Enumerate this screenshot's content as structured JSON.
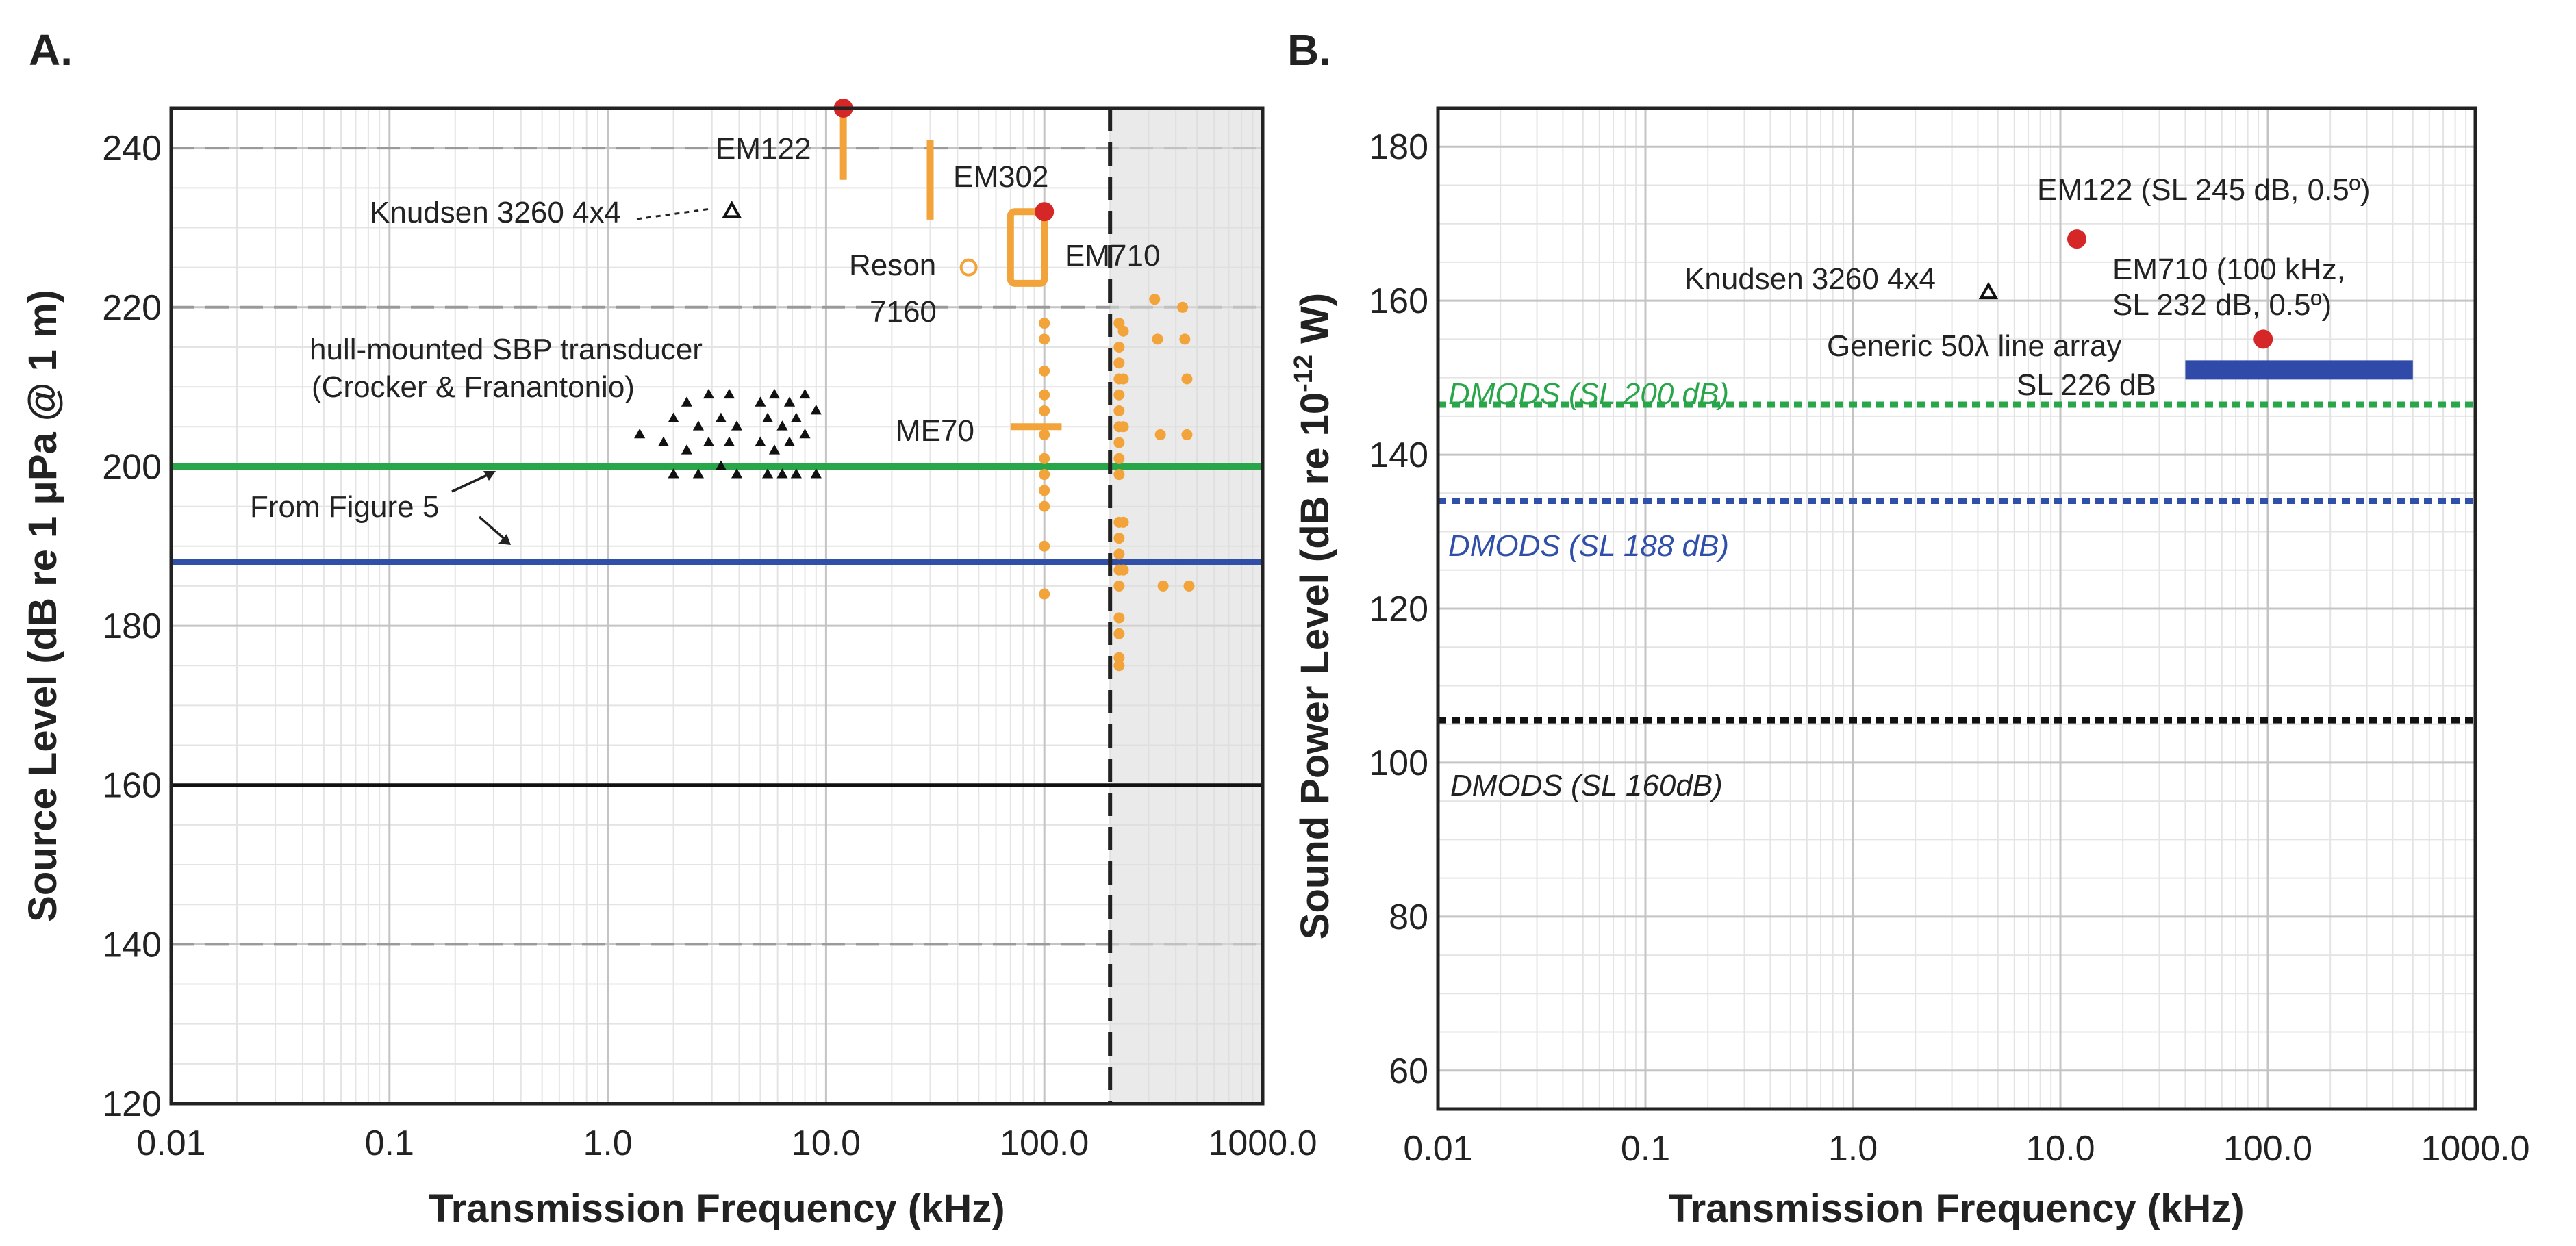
{
  "chart_data": [
    {
      "panel": "A.",
      "type": "scatter",
      "xscale": "log",
      "xlabel": "Transmission Frequency (kHz)",
      "ylabel": "Source Level (dB re 1 μPa @ 1 m)",
      "xlim": [
        0.01,
        1000
      ],
      "ylim": [
        120,
        245
      ],
      "xticks": [
        0.01,
        0.1,
        1,
        10,
        100,
        1000
      ],
      "xtick_labels": [
        "0.01",
        "0.1",
        "1.0",
        "10.0",
        "100.0",
        "1000.0"
      ],
      "yticks": [
        120,
        140,
        160,
        180,
        200,
        220,
        240
      ],
      "ytick_labels": [
        "120",
        "140",
        "160",
        "180",
        "200",
        "220",
        "240"
      ],
      "dashed_y": [
        140,
        220,
        240
      ],
      "shaded_region_x": [
        200,
        1000
      ],
      "vertical_dashed_x": 200,
      "lines": [
        {
          "name": "green line",
          "y": 200,
          "color": "#2aa64a"
        },
        {
          "name": "blue line",
          "y": 188,
          "color": "#2f4fa8"
        },
        {
          "name": "black line",
          "y": 160,
          "color": "#111111"
        }
      ],
      "series": [
        {
          "name": "hull-mounted SBP transducer (Crocker & Franantonio)",
          "marker": "triangle",
          "color": "#111111",
          "points": [
            [
              1.4,
              204
            ],
            [
              1.8,
              203
            ],
            [
              2.0,
              206
            ],
            [
              2.0,
              199
            ],
            [
              2.3,
              208
            ],
            [
              2.3,
              202
            ],
            [
              2.6,
              205
            ],
            [
              2.6,
              199
            ],
            [
              2.9,
              209
            ],
            [
              2.9,
              203
            ],
            [
              3.3,
              206
            ],
            [
              3.3,
              200
            ],
            [
              3.6,
              209
            ],
            [
              3.6,
              203
            ],
            [
              3.9,
              205
            ],
            [
              3.9,
              199
            ],
            [
              5.0,
              208
            ],
            [
              5.0,
              203
            ],
            [
              5.4,
              206
            ],
            [
              5.4,
              199
            ],
            [
              5.8,
              209
            ],
            [
              5.8,
              202
            ],
            [
              6.3,
              205
            ],
            [
              6.3,
              199
            ],
            [
              6.8,
              208
            ],
            [
              6.8,
              203
            ],
            [
              7.3,
              206
            ],
            [
              7.3,
              199
            ],
            [
              8.0,
              209
            ],
            [
              8.0,
              204
            ],
            [
              9.0,
              207
            ],
            [
              9.0,
              199
            ]
          ]
        },
        {
          "name": "MBES > 200 kHz",
          "marker": "dot",
          "color": "#f2a33a",
          "points": [
            [
              220,
              218
            ],
            [
              220,
              215
            ],
            [
              220,
              213
            ],
            [
              220,
              211
            ],
            [
              220,
              209
            ],
            [
              220,
              207
            ],
            [
              220,
              205
            ],
            [
              220,
              203
            ],
            [
              220,
              201
            ],
            [
              220,
              199
            ],
            [
              220,
              193
            ],
            [
              220,
              191
            ],
            [
              220,
              189
            ],
            [
              220,
              187
            ],
            [
              220,
              185
            ],
            [
              220,
              181
            ],
            [
              220,
              179
            ],
            [
              220,
              176
            ],
            [
              220,
              175
            ],
            [
              230,
              217
            ],
            [
              230,
              211
            ],
            [
              230,
              205
            ],
            [
              230,
              193
            ],
            [
              230,
              187
            ],
            [
              320,
              221
            ],
            [
              330,
              216
            ],
            [
              340,
              204
            ],
            [
              350,
              185
            ],
            [
              430,
              220
            ],
            [
              440,
              216
            ],
            [
              450,
              211
            ],
            [
              450,
              204
            ],
            [
              460,
              185
            ]
          ]
        },
        {
          "name": "ME70 dots",
          "marker": "dot",
          "color": "#f2a33a",
          "points": [
            [
              100,
              218
            ],
            [
              100,
              216
            ],
            [
              100,
              212
            ],
            [
              100,
              209
            ],
            [
              100,
              207
            ],
            [
              100,
              204
            ],
            [
              100,
              201
            ],
            [
              100,
              199
            ],
            [
              100,
              197
            ],
            [
              100,
              195
            ],
            [
              100,
              190
            ],
            [
              100,
              184
            ]
          ]
        },
        {
          "name": "Knudsen 3260 4x4",
          "marker": "open-triangle",
          "color": "#111111",
          "points": [
            [
              3.7,
              232
            ]
          ]
        },
        {
          "name": "Reson 7160",
          "marker": "open-circle",
          "color": "#f2a33a",
          "points": [
            [
              45,
              225
            ]
          ]
        },
        {
          "name": "EM122",
          "marker": "red-dot",
          "color": "#d62728",
          "points": [
            [
              12,
              245
            ]
          ]
        },
        {
          "name": "EM710",
          "marker": "red-dot",
          "color": "#d62728",
          "points": [
            [
              100,
              232
            ]
          ]
        }
      ],
      "ranges": [
        {
          "name": "EM122",
          "x": [
            12,
            12
          ],
          "y": [
            236,
            245
          ]
        },
        {
          "name": "EM302",
          "x": [
            30,
            30
          ],
          "y": [
            231,
            241
          ]
        },
        {
          "name": "EM710",
          "x": [
            70,
            100
          ],
          "y": [
            223,
            232
          ]
        },
        {
          "name": "ME70",
          "x": [
            70,
            120
          ],
          "y": [
            205,
            205
          ]
        }
      ],
      "annotations": {
        "em122": "EM122",
        "knudsen": "Knudsen 3260 4x4",
        "em302": "EM302",
        "reson": "Reson",
        "reson_model": "7160",
        "em710": "EM710",
        "hull_1": "hull-mounted SBP transducer",
        "hull_2": "(Crocker & Franantonio)",
        "me70": "ME70",
        "from_fig": "From Figure 5"
      }
    },
    {
      "panel": "B.",
      "type": "scatter",
      "xscale": "log",
      "xlabel": "Transmission Frequency (kHz)",
      "ylabel_main": "Sound Power Level (dB re 10",
      "ylabel_sup": "-12",
      "ylabel_tail": " W)",
      "xlim": [
        0.01,
        1000
      ],
      "ylim": [
        55,
        185
      ],
      "xticks": [
        0.01,
        0.1,
        1,
        10,
        100,
        1000
      ],
      "xtick_labels": [
        "0.01",
        "0.1",
        "1.0",
        "10.0",
        "100.0",
        "1000.0"
      ],
      "yticks": [
        60,
        80,
        100,
        120,
        140,
        160,
        180
      ],
      "ytick_labels": [
        "60",
        "80",
        "100",
        "120",
        "140",
        "160",
        "180"
      ],
      "lines": [
        {
          "name": "DMODS (SL 200 dB)",
          "y": 146.5,
          "color": "#2aa64a",
          "dotted": true
        },
        {
          "name": "DMODS (SL 188 dB)",
          "y": 134,
          "color": "#2f4fa8",
          "dotted": true
        },
        {
          "name": "DMODS (SL 160dB)",
          "y": 105.5,
          "color": "#111111",
          "dotted": true
        }
      ],
      "series": [
        {
          "name": "EM122 (SL 245 dB, 0.5º)",
          "marker": "red-dot",
          "color": "#d62728",
          "points": [
            [
              12,
              168
            ]
          ]
        },
        {
          "name": "EM710 (100 kHz, SL 232 dB, 0.5º)",
          "marker": "red-dot",
          "color": "#d62728",
          "points": [
            [
              95,
              155
            ]
          ]
        },
        {
          "name": "Knudsen 3260 4x4",
          "marker": "open-triangle",
          "color": "#111111",
          "points": [
            [
              4.5,
              161
            ]
          ]
        }
      ],
      "bar": {
        "name": "Generic 50λ line array SL 226 dB",
        "x": [
          40,
          500
        ],
        "y": 151,
        "color": "#2f4aa8"
      },
      "annotations": {
        "em122": "EM122 (SL 245 dB, 0.5º)",
        "knudsen": "Knudsen 3260 4x4",
        "em710_1": "EM710 (100 kHz,",
        "em710_2": "SL 232 dB, 0.5º)",
        "generic_1": "Generic 50λ line array",
        "generic_2": "SL 226 dB",
        "dmods_200": "DMODS (SL 200 dB)",
        "dmods_188": "DMODS (SL 188 dB)",
        "dmods_160": "DMODS (SL 160dB)"
      }
    }
  ]
}
